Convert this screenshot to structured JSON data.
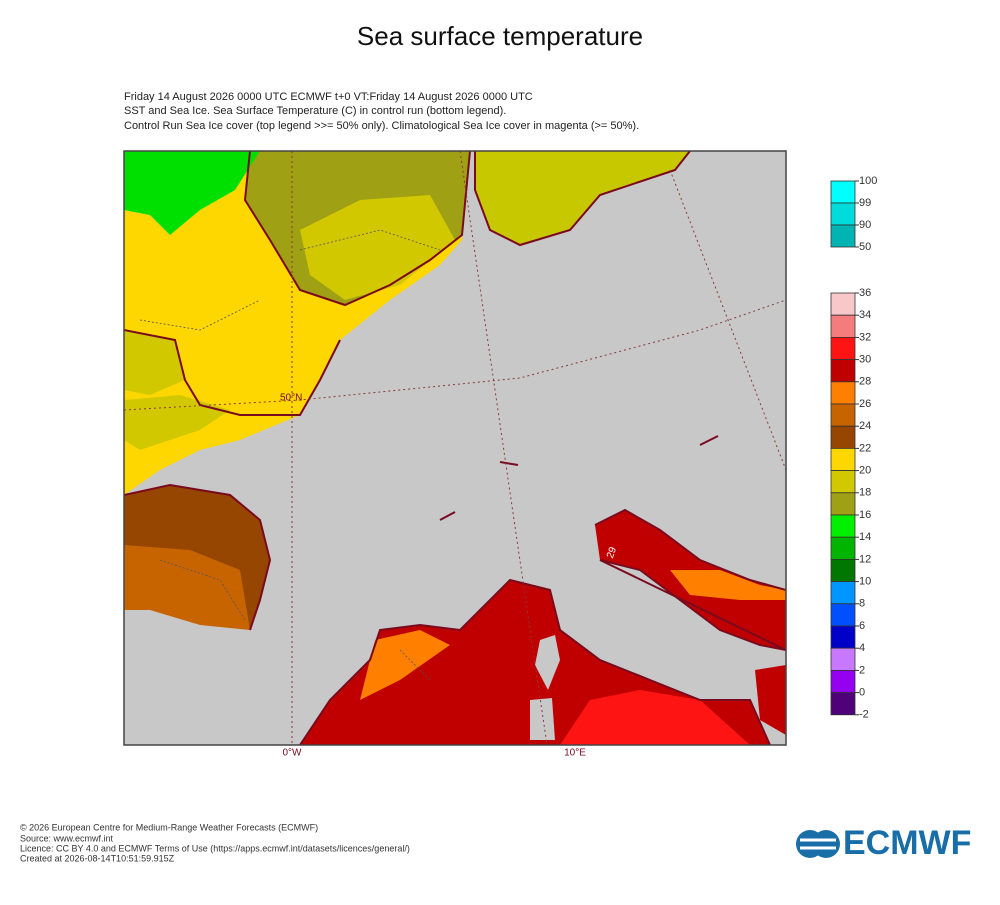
{
  "title": "Sea surface temperature",
  "subtitle_lines": [
    "Friday 14 August 2026 0000 UTC  ECMWF  t+0  VT:Friday 14 August 2026 0000 UTC",
    "SST and Sea Ice. Sea Surface Temperature (C) in control run (bottom legend).",
    "Control Run Sea Ice cover (top legend >>= 50% only). Climatological Sea Ice cover in magenta (>= 50%)."
  ],
  "map": {
    "lat_label": "50°N",
    "lon_labels": [
      "0°W",
      "10°E"
    ],
    "contour_label": "29"
  },
  "legend_ice": {
    "ticks": [
      100,
      99,
      90,
      50
    ],
    "colors": [
      "#00ffff",
      "#00dcdc",
      "#00b4b4"
    ]
  },
  "legend_sst": {
    "ticks": [
      36,
      34,
      32,
      30,
      28,
      26,
      24,
      22,
      20,
      18,
      16,
      14,
      12,
      10,
      8,
      6,
      4,
      2,
      0,
      -2
    ],
    "colors": [
      "#f8c8c8",
      "#f47c7c",
      "#ff1414",
      "#c00000",
      "#ff7f00",
      "#c86400",
      "#964600",
      "#ffd700",
      "#d2c800",
      "#a0a014",
      "#00f000",
      "#00b400",
      "#007800",
      "#0096ff",
      "#0050ff",
      "#0000c8",
      "#c878ff",
      "#9600f0",
      "#500078"
    ]
  },
  "footer": {
    "lines": [
      "© 2026 European Centre for Medium-Range Weather Forecasts (ECMWF)",
      "Source: www.ecmwf.int",
      "Licence: CC BY 4.0 and ECMWF Terms of Use (https://apps.ecmwf.int/datasets/licences/general/)",
      "Created at 2026-08-14T10:51:59.915Z"
    ],
    "logo": "ECMWF"
  }
}
